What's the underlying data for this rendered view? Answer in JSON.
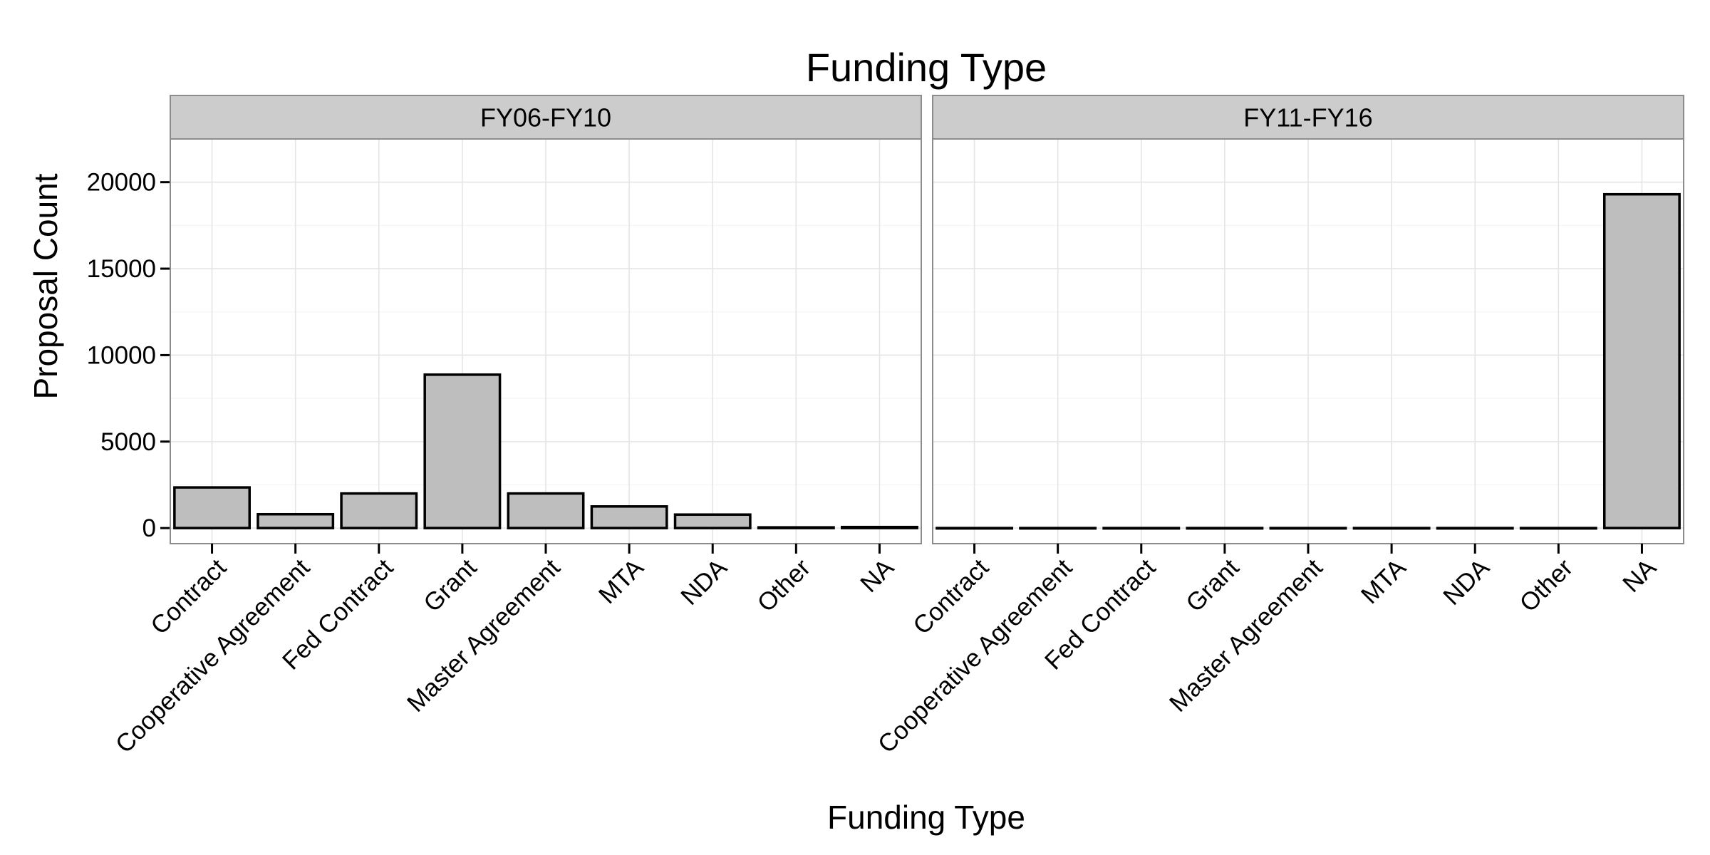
{
  "chart_data": {
    "type": "bar",
    "title": "Funding Type",
    "xlabel": "Funding Type",
    "ylabel": "Proposal Count",
    "ylim": [
      -900,
      22500
    ],
    "yticks": [
      0,
      5000,
      10000,
      15000,
      20000
    ],
    "grid": true,
    "categories": [
      "Contract",
      "Cooperative Agreement",
      "Fed Contract",
      "Grant",
      "Master Agreement",
      "MTA",
      "NDA",
      "Other",
      "NA"
    ],
    "panels": [
      {
        "name": "FY06-FY10",
        "values": [
          2350,
          800,
          2000,
          8870,
          2000,
          1250,
          780,
          40,
          60
        ]
      },
      {
        "name": "FY11-FY16",
        "values": [
          0,
          0,
          0,
          0,
          0,
          0,
          0,
          0,
          19300
        ]
      }
    ]
  }
}
